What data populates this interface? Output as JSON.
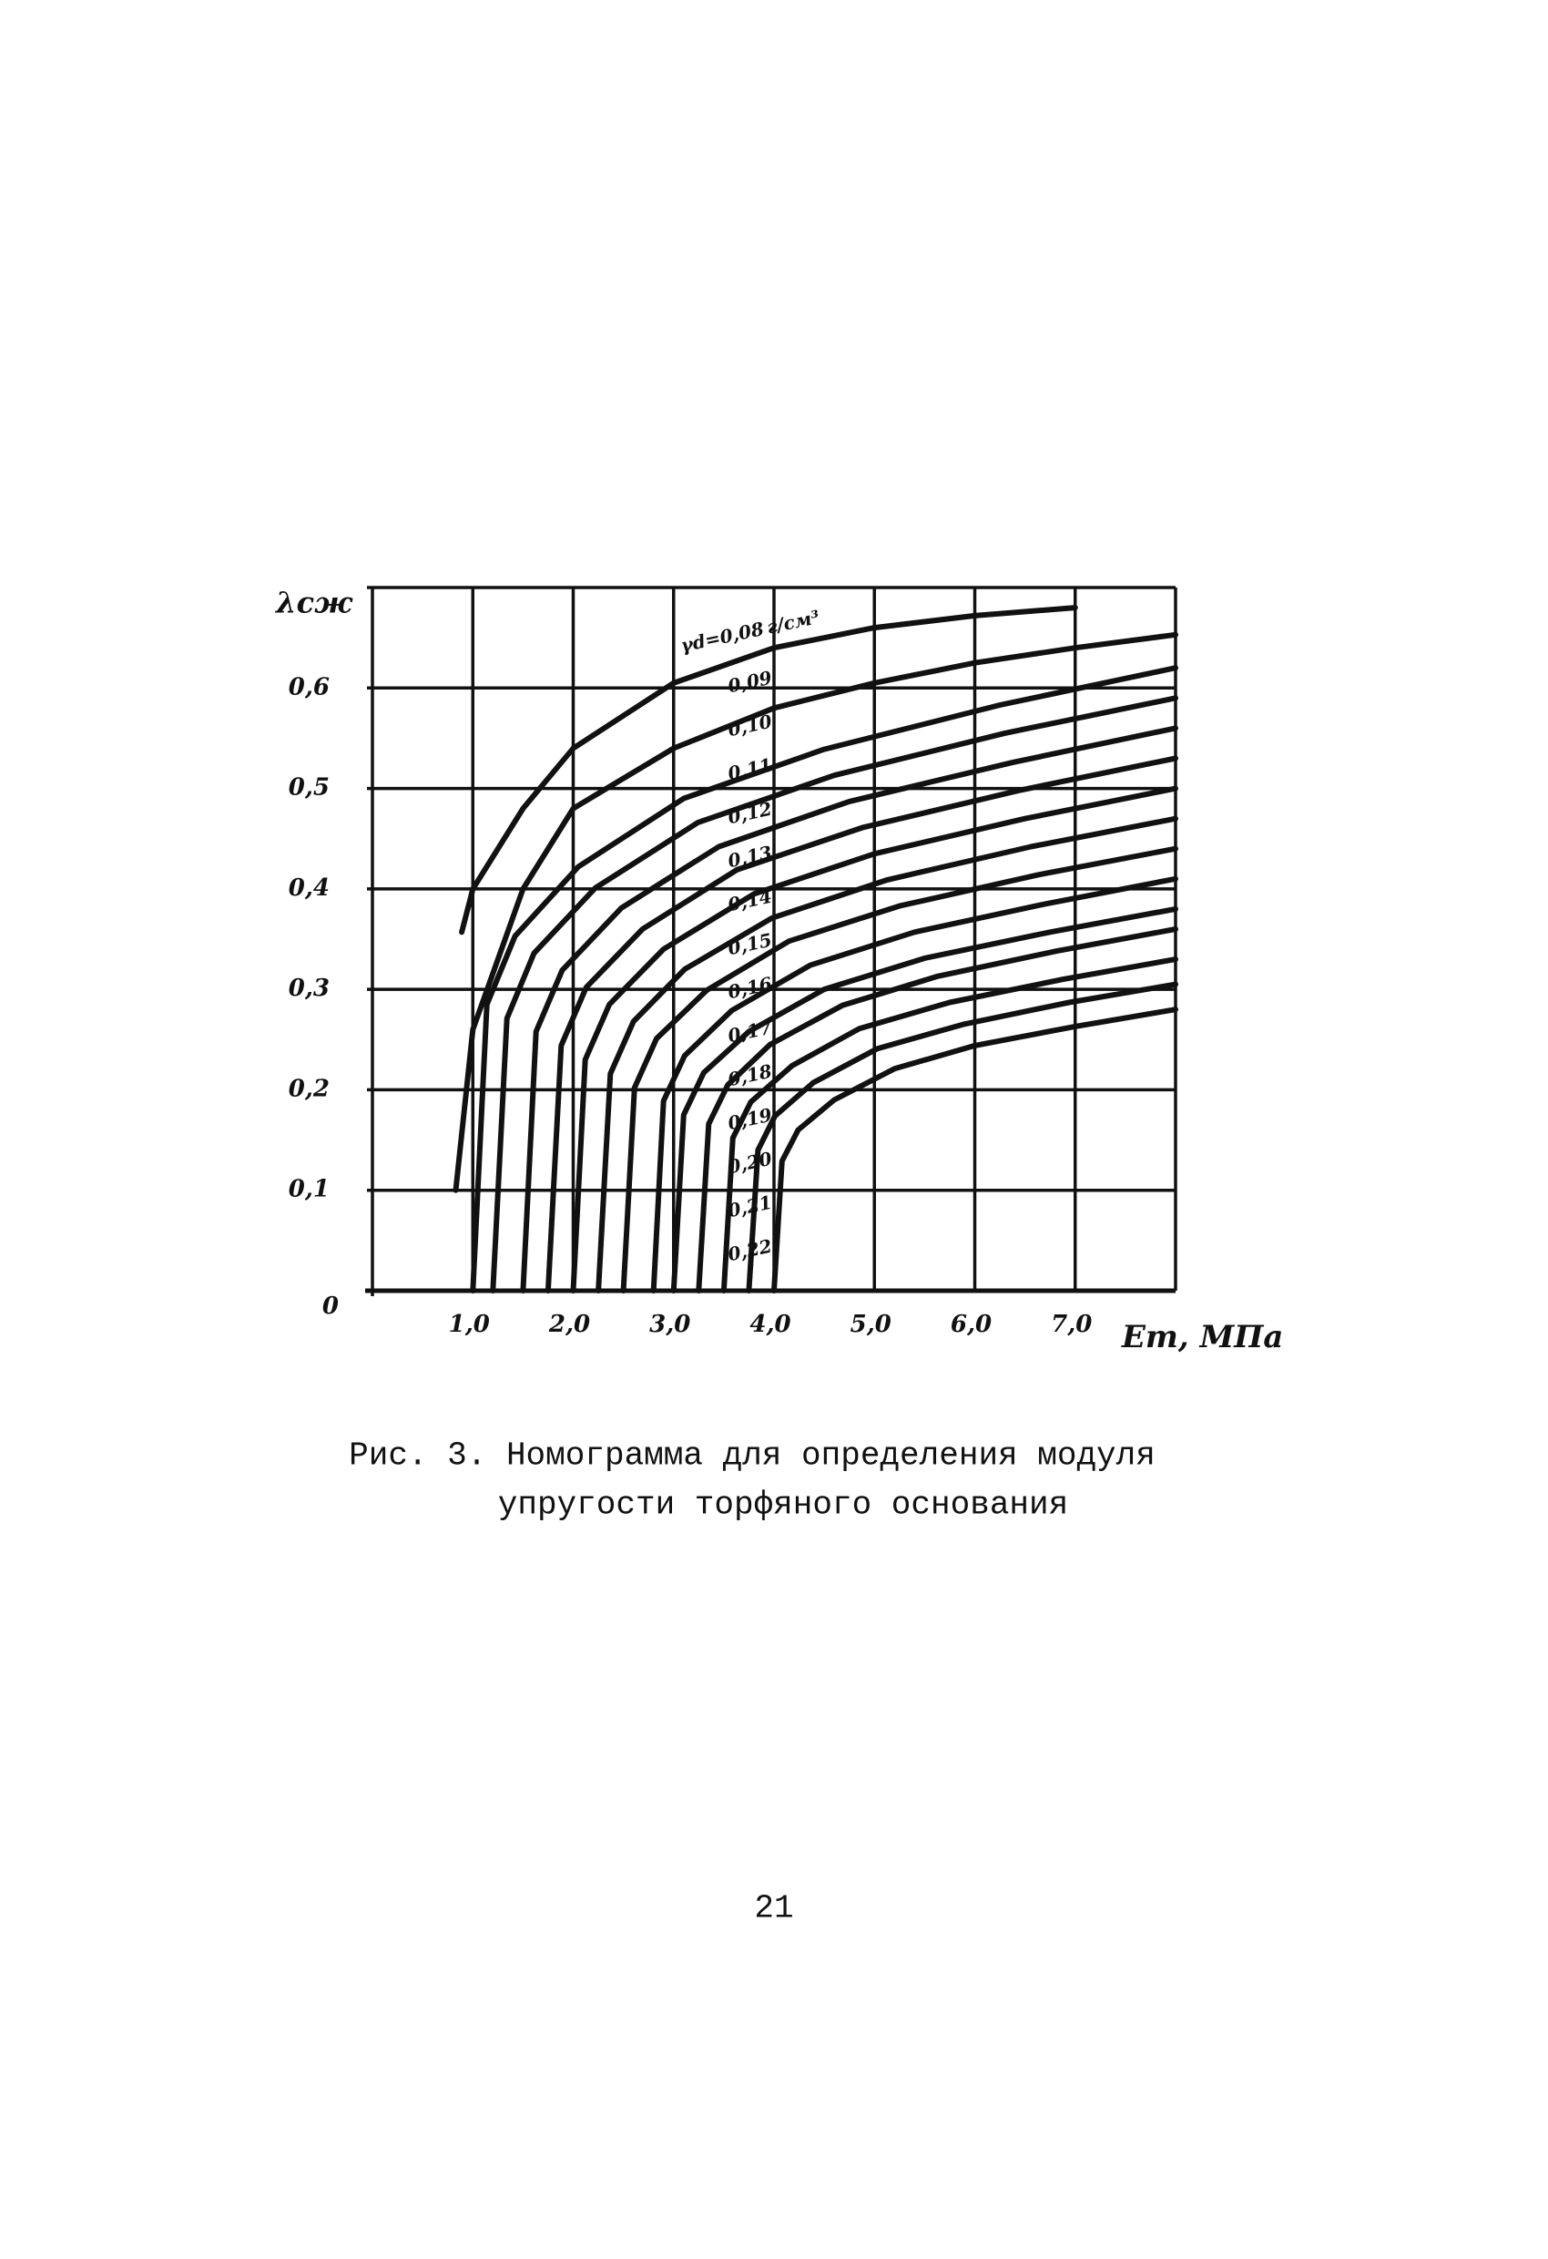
{
  "chart_data": {
    "type": "line",
    "y_label": "λсж",
    "x_label": "Eт, МПа",
    "series_label_prefix": "γd=",
    "series_label_unit": "г/см³",
    "color": "#111111",
    "grid": true,
    "xlim": [
      0,
      8
    ],
    "ylim": [
      0,
      0.7
    ],
    "xticks": [
      {
        "value": 1,
        "label": "1,0"
      },
      {
        "value": 2,
        "label": "2,0"
      },
      {
        "value": 3,
        "label": "3,0"
      },
      {
        "value": 4,
        "label": "4,0"
      },
      {
        "value": 5,
        "label": "5,0"
      },
      {
        "value": 6,
        "label": "6,0"
      },
      {
        "value": 7,
        "label": "7,0"
      }
    ],
    "yticks": [
      0,
      {
        "value": 0.1,
        "label": "0,1"
      },
      {
        "value": 0.2,
        "label": "0,2"
      },
      {
        "value": 0.3,
        "label": "0,3"
      },
      {
        "value": 0.4,
        "label": "0,4"
      },
      {
        "value": 0.5,
        "label": "0,5"
      },
      {
        "value": 0.6,
        "label": "0,6"
      }
    ],
    "series": [
      {
        "name": "0,08",
        "x": [
          0.89,
          1,
          1.5,
          2,
          3,
          4,
          5,
          6,
          7
        ],
        "values": [
          0.357,
          0.4,
          0.48,
          0.54,
          0.605,
          0.64,
          0.66,
          0.672,
          0.68
        ]
      },
      {
        "name": "0,09",
        "x": [
          0.83,
          1,
          1.5,
          2,
          3,
          4,
          5,
          6,
          7,
          8
        ],
        "values": [
          0.1,
          0.26,
          0.4,
          0.48,
          0.54,
          0.58,
          0.605,
          0.625,
          0.64,
          0.653
        ]
      },
      {
        "name": "0,10",
        "x": [
          1,
          1.14,
          1.42,
          2.05,
          3.1,
          4.5,
          6.25,
          8
        ],
        "values": [
          0,
          0.285,
          0.353,
          0.422,
          0.49,
          0.539,
          0.583,
          0.62
        ]
      },
      {
        "name": "0,11",
        "x": [
          1.2,
          1.34,
          1.61,
          2.22,
          3.24,
          4.6,
          6.3,
          8
        ],
        "values": [
          0,
          0.271,
          0.336,
          0.401,
          0.466,
          0.513,
          0.555,
          0.59
        ]
      },
      {
        "name": "0,12",
        "x": [
          1.5,
          1.63,
          1.89,
          2.48,
          3.45,
          4.75,
          6.38,
          8
        ],
        "values": [
          0,
          0.258,
          0.319,
          0.381,
          0.442,
          0.487,
          0.526,
          0.56
        ]
      },
      {
        "name": "0,13",
        "x": [
          1.75,
          1.88,
          2.13,
          2.69,
          3.63,
          4.88,
          6.44,
          8
        ],
        "values": [
          0,
          0.244,
          0.302,
          0.36,
          0.419,
          0.461,
          0.498,
          0.53
        ]
      },
      {
        "name": "0,14",
        "x": [
          2,
          2.12,
          2.36,
          2.9,
          3.8,
          5,
          6.5,
          8
        ],
        "values": [
          0,
          0.23,
          0.285,
          0.34,
          0.395,
          0.435,
          0.47,
          0.5
        ]
      },
      {
        "name": "0,15",
        "x": [
          2.25,
          2.37,
          2.6,
          3.11,
          3.98,
          5.13,
          6.56,
          8
        ],
        "values": [
          0,
          0.216,
          0.268,
          0.32,
          0.371,
          0.409,
          0.442,
          0.47
        ]
      },
      {
        "name": "0,16",
        "x": [
          2.5,
          2.61,
          2.83,
          3.33,
          4.15,
          5.25,
          6.63,
          8
        ],
        "values": [
          0,
          0.202,
          0.251,
          0.299,
          0.348,
          0.383,
          0.414,
          0.44
        ]
      },
      {
        "name": "0,17",
        "x": [
          2.8,
          2.9,
          3.11,
          3.58,
          4.36,
          5.4,
          6.7,
          8
        ],
        "values": [
          0,
          0.189,
          0.234,
          0.279,
          0.324,
          0.357,
          0.385,
          0.41
        ]
      },
      {
        "name": "0,18",
        "x": [
          3,
          3.1,
          3.3,
          3.75,
          4.5,
          5.5,
          6.75,
          8
        ],
        "values": [
          0,
          0.175,
          0.217,
          0.258,
          0.3,
          0.331,
          0.357,
          0.38
        ]
      },
      {
        "name": "0,19",
        "x": [
          3.25,
          3.35,
          3.54,
          3.96,
          4.68,
          5.63,
          6.81,
          8
        ],
        "values": [
          0,
          0.166,
          0.205,
          0.245,
          0.284,
          0.313,
          0.338,
          0.36
        ]
      },
      {
        "name": "0,20",
        "x": [
          3.5,
          3.59,
          3.77,
          4.18,
          4.85,
          5.75,
          6.88,
          8
        ],
        "values": [
          0,
          0.152,
          0.188,
          0.224,
          0.261,
          0.287,
          0.31,
          0.33
        ]
      },
      {
        "name": "0,21",
        "x": [
          3.75,
          3.84,
          4.01,
          4.39,
          5.03,
          5.88,
          6.94,
          8
        ],
        "values": [
          0,
          0.14,
          0.174,
          0.207,
          0.241,
          0.265,
          0.287,
          0.305
        ]
      },
      {
        "name": "0,22",
        "x": [
          4,
          4.08,
          4.24,
          4.6,
          5.2,
          6,
          7,
          8
        ],
        "values": [
          0,
          0.129,
          0.16,
          0.19,
          0.221,
          0.244,
          0.263,
          0.28
        ]
      }
    ]
  },
  "caption": [
    "Рис. 3. Номограмма для определения модуля",
    "упругости торфяного основания"
  ],
  "page_number": "21"
}
